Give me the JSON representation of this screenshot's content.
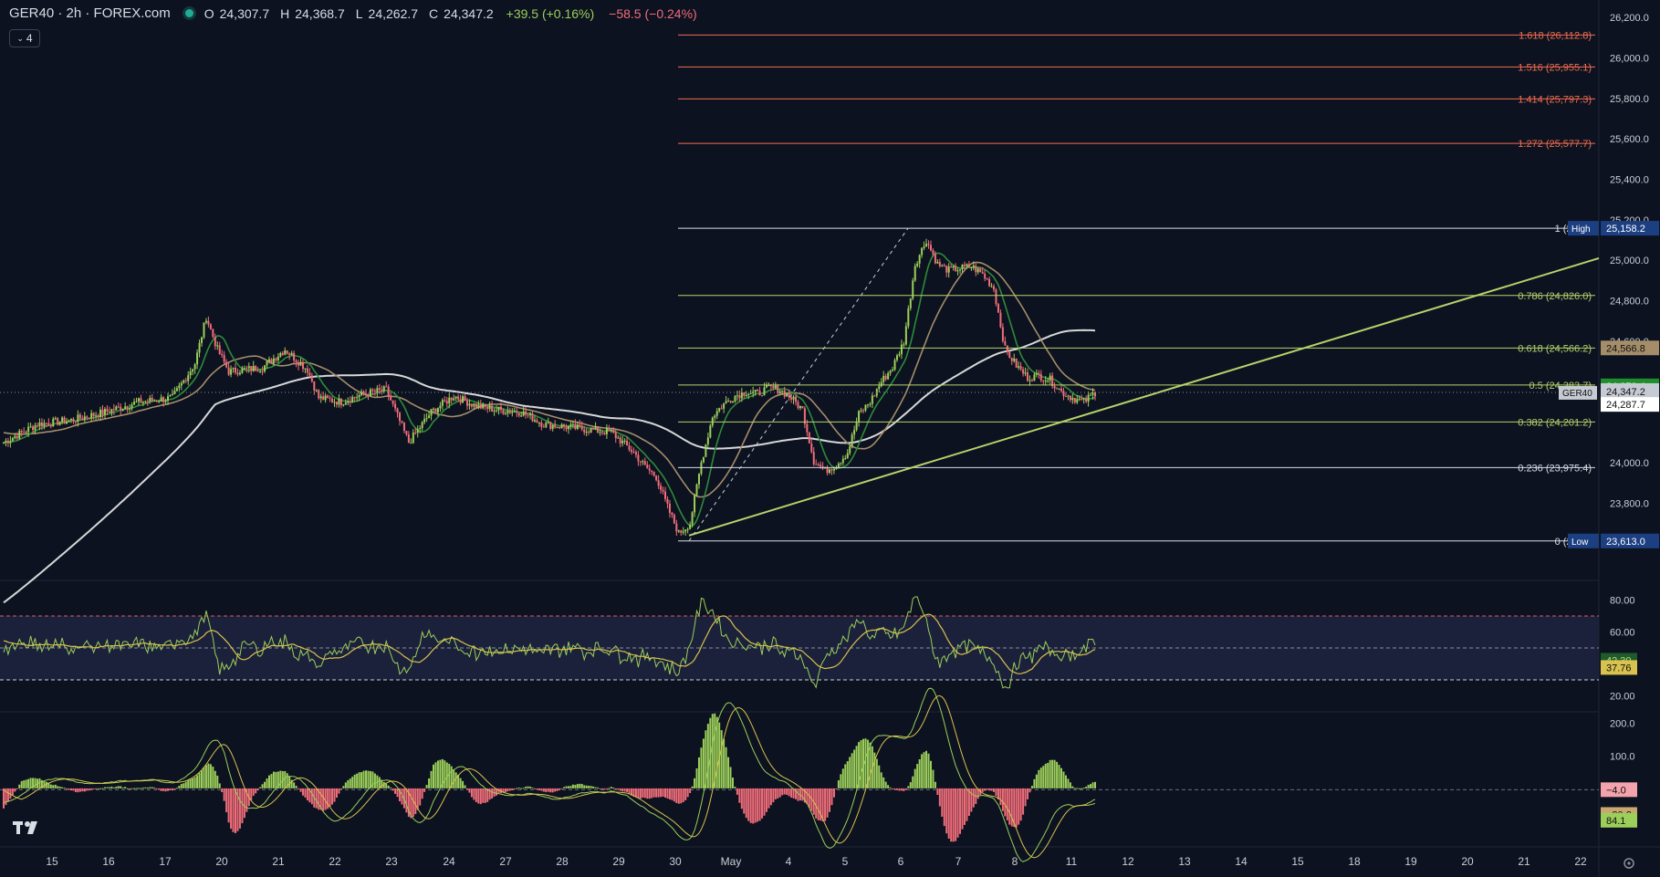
{
  "header": {
    "symbol": "GER40 · 2h · FOREX.com",
    "open_label": "O",
    "open": "24,307.7",
    "high_label": "H",
    "high": "24,368.7",
    "low_label": "L",
    "low": "24,262.7",
    "close_label": "C",
    "close": "24,347.2",
    "change": "+39.5 (+0.16%)",
    "change2": "−58.5 (−0.24%)",
    "indicators_count": "4"
  },
  "colors": {
    "background": "#0c1220",
    "up_candle": "#9ccf5a",
    "down_candle": "#f26d7a",
    "fib_green": "#b5d36a",
    "fib_red": "#f26d4e",
    "fib_white": "#d8dde6",
    "sma_green": "#2e8b3a",
    "sma_tan": "#a58d6a",
    "sma_white": "#d8d8d8",
    "rsi_band": "#1e2540",
    "rsi_line": "#9ccf5a",
    "rsi_ma": "#d9c24f"
  },
  "price_axis": {
    "ticks": [
      "26,200.0",
      "26,000.0",
      "25,800.0",
      "25,600.0",
      "25,400.0",
      "25,200.0",
      "25,000.0",
      "24,800.0",
      "24,600.0",
      "24,000.0",
      "23,800.0"
    ],
    "labels": [
      {
        "text": "25,158.2",
        "tag": "High",
        "kind": "high"
      },
      {
        "text": "24,566.8",
        "kind": "tan"
      },
      {
        "text": "24,379.4",
        "kind": "green"
      },
      {
        "text": "24,347.2",
        "sub": "17:01",
        "tag": "GER40",
        "kind": "current"
      },
      {
        "text": "24,287.7",
        "kind": "white"
      },
      {
        "text": "23,613.0",
        "tag": "Low",
        "kind": "low"
      }
    ]
  },
  "fib_levels": [
    {
      "ratio": "1.618",
      "label": "1.618 (26,112.8)",
      "kind": "red"
    },
    {
      "ratio": "1.516",
      "label": "1.516 (25,955.1)",
      "kind": "red"
    },
    {
      "ratio": "1.414",
      "label": "1.414 (25,797.3)",
      "kind": "red"
    },
    {
      "ratio": "1.272",
      "label": "1.272 (25,577.7)",
      "kind": "red"
    },
    {
      "ratio": "1",
      "label": "1 (25,15",
      "kind": "white"
    },
    {
      "ratio": "0.786",
      "label": "0.786 (24,826.0)",
      "kind": "green"
    },
    {
      "ratio": "0.618",
      "label": "0.618 (24,566.2)",
      "kind": "green"
    },
    {
      "ratio": "0.5",
      "label": "0.5 (24,383.7)",
      "kind": "green"
    },
    {
      "ratio": "0.382",
      "label": "0.382 (24,201.2)",
      "kind": "green"
    },
    {
      "ratio": "0.236",
      "label": "0.236 (23,975.4)",
      "kind": "white"
    },
    {
      "ratio": "0",
      "label": "0 (23,61",
      "kind": "white"
    }
  ],
  "rsi": {
    "ticks": [
      "80.00",
      "60.00",
      "20.00"
    ],
    "value_labels": [
      {
        "text": "42.30",
        "kind": "green"
      },
      {
        "text": "37.76",
        "kind": "yellow"
      }
    ]
  },
  "macd": {
    "ticks": [
      "200.0",
      "100.0"
    ],
    "value_labels": [
      {
        "text": "−4.0",
        "kind": "pink"
      },
      {
        "text": "−80.2",
        "kind": "tan"
      },
      {
        "text": "84.1",
        "kind": "green"
      }
    ]
  },
  "time_axis": {
    "labels": [
      "15",
      "16",
      "17",
      "20",
      "21",
      "22",
      "23",
      "24",
      "27",
      "28",
      "29",
      "30",
      "May",
      "4",
      "5",
      "6",
      "7",
      "8",
      "11",
      "12",
      "13",
      "14",
      "15",
      "18",
      "19",
      "20",
      "21",
      "22"
    ]
  },
  "logo_text": "TV",
  "chart_data": {
    "type": "candlestick",
    "title": "GER40 · 2h · FOREX.com",
    "ylim": [
      23400,
      26250
    ],
    "markers": {
      "swing_low": 23613.0,
      "swing_high": 25158.2,
      "last": 24347.2
    },
    "price_path": [
      [
        0,
        24100
      ],
      [
        15,
        24190
      ],
      [
        30,
        24210
      ],
      [
        45,
        24250
      ],
      [
        60,
        24300
      ],
      [
        75,
        24320
      ],
      [
        85,
        24490
      ],
      [
        90,
        24720
      ],
      [
        95,
        24560
      ],
      [
        100,
        24450
      ],
      [
        115,
        24470
      ],
      [
        125,
        24560
      ],
      [
        135,
        24460
      ],
      [
        140,
        24320
      ],
      [
        150,
        24300
      ],
      [
        160,
        24340
      ],
      [
        170,
        24360
      ],
      [
        180,
        24100
      ],
      [
        190,
        24250
      ],
      [
        200,
        24330
      ],
      [
        210,
        24280
      ],
      [
        220,
        24260
      ],
      [
        230,
        24250
      ],
      [
        240,
        24190
      ],
      [
        255,
        24170
      ],
      [
        270,
        24150
      ],
      [
        280,
        24050
      ],
      [
        285,
        23980
      ],
      [
        290,
        23930
      ],
      [
        295,
        23780
      ],
      [
        300,
        23650
      ],
      [
        305,
        23700
      ],
      [
        310,
        24000
      ],
      [
        315,
        24230
      ],
      [
        320,
        24290
      ],
      [
        325,
        24330
      ],
      [
        330,
        24350
      ],
      [
        335,
        24340
      ],
      [
        340,
        24370
      ],
      [
        345,
        24360
      ],
      [
        350,
        24320
      ],
      [
        355,
        24260
      ],
      [
        360,
        24010
      ],
      [
        365,
        23960
      ],
      [
        370,
        23990
      ],
      [
        375,
        24050
      ],
      [
        380,
        24240
      ],
      [
        385,
        24300
      ],
      [
        390,
        24400
      ],
      [
        395,
        24470
      ],
      [
        400,
        24600
      ],
      [
        405,
        24980
      ],
      [
        410,
        25100
      ],
      [
        415,
        24980
      ],
      [
        420,
        24950
      ],
      [
        425,
        24960
      ],
      [
        430,
        24970
      ],
      [
        435,
        24930
      ],
      [
        440,
        24860
      ],
      [
        445,
        24560
      ],
      [
        450,
        24480
      ],
      [
        455,
        24420
      ],
      [
        460,
        24430
      ],
      [
        465,
        24410
      ],
      [
        470,
        24350
      ],
      [
        475,
        24320
      ],
      [
        480,
        24300
      ],
      [
        485,
        24347
      ]
    ]
  }
}
